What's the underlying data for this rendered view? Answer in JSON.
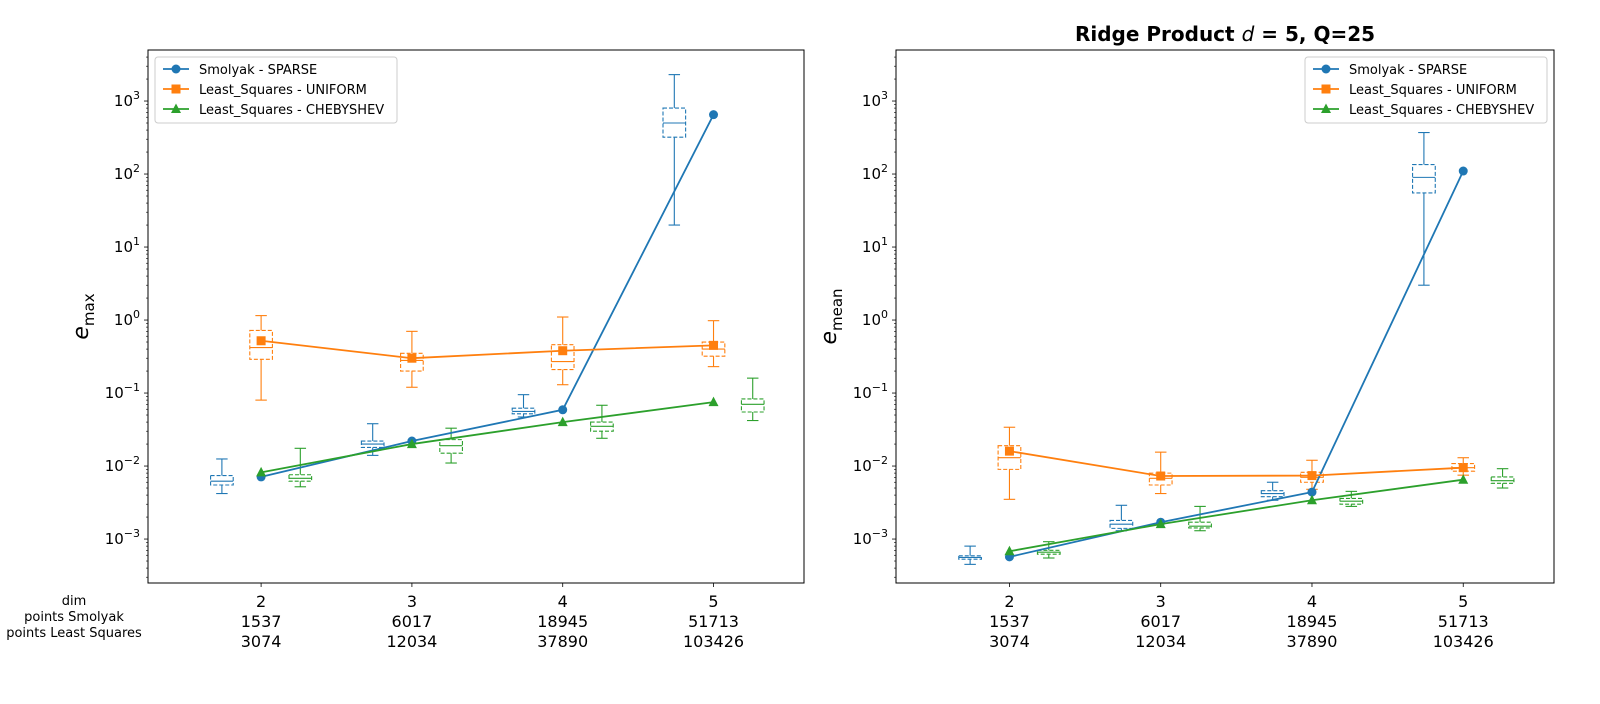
{
  "figure": {
    "row_labels": [
      "dim",
      "points Smolyak",
      "points Least Squares"
    ]
  },
  "chart_data": [
    {
      "type": "line",
      "title": "",
      "xlabel": "",
      "ylabel_base": "e",
      "ylabel_sub": "max",
      "yscale": "log",
      "ylim": [
        0.00025,
        5000
      ],
      "xlim": [
        1.25,
        5.6
      ],
      "grid": false,
      "legend_position": "top-left",
      "x": [
        2,
        3,
        4,
        5
      ],
      "x_tick_labels": [
        [
          "2",
          "1537",
          "3074"
        ],
        [
          "3",
          "6017",
          "12034"
        ],
        [
          "4",
          "18945",
          "37890"
        ],
        [
          "5",
          "51713",
          "103426"
        ]
      ],
      "y_ticks": [
        {
          "value": 0.001,
          "base": "10",
          "exp": "−3"
        },
        {
          "value": 0.01,
          "base": "10",
          "exp": "−2"
        },
        {
          "value": 0.1,
          "base": "10",
          "exp": "−1"
        },
        {
          "value": 1,
          "base": "10",
          "exp": "0"
        },
        {
          "value": 10,
          "base": "10",
          "exp": "1"
        },
        {
          "value": 100,
          "base": "10",
          "exp": "2"
        },
        {
          "value": 1000,
          "base": "10",
          "exp": "3"
        }
      ],
      "series": [
        {
          "name": "Smolyak - SPARSE",
          "color": "#1f77b4",
          "marker": "circle",
          "values": [
            0.0071,
            0.022,
            0.059,
            650
          ],
          "boxes": [
            {
              "whisker_low": 0.0042,
              "q1": 0.0055,
              "median": 0.0062,
              "q3": 0.0074,
              "whisker_high": 0.0125
            },
            {
              "whisker_low": 0.014,
              "q1": 0.018,
              "median": 0.02,
              "q3": 0.022,
              "whisker_high": 0.038
            },
            {
              "whisker_low": 0.047,
              "q1": 0.052,
              "median": 0.056,
              "q3": 0.062,
              "whisker_high": 0.095
            },
            {
              "whisker_low": 20,
              "q1": 320,
              "median": 500,
              "q3": 800,
              "whisker_high": 2300
            }
          ]
        },
        {
          "name": "Least_Squares - UNIFORM",
          "color": "#ff7f0e",
          "marker": "square",
          "values": [
            0.52,
            0.3,
            0.38,
            0.45
          ],
          "boxes": [
            {
              "whisker_low": 0.08,
              "q1": 0.29,
              "median": 0.42,
              "q3": 0.72,
              "whisker_high": 1.15
            },
            {
              "whisker_low": 0.12,
              "q1": 0.2,
              "median": 0.28,
              "q3": 0.35,
              "whisker_high": 0.7
            },
            {
              "whisker_low": 0.13,
              "q1": 0.21,
              "median": 0.27,
              "q3": 0.46,
              "whisker_high": 1.1
            },
            {
              "whisker_low": 0.23,
              "q1": 0.32,
              "median": 0.4,
              "q3": 0.5,
              "whisker_high": 0.98
            }
          ]
        },
        {
          "name": "Least_Squares - CHEBYSHEV",
          "color": "#2ca02c",
          "marker": "triangle",
          "values": [
            0.0082,
            0.02,
            0.04,
            0.075
          ],
          "boxes": [
            {
              "whisker_low": 0.0052,
              "q1": 0.0062,
              "median": 0.0068,
              "q3": 0.0076,
              "whisker_high": 0.0175
            },
            {
              "whisker_low": 0.011,
              "q1": 0.015,
              "median": 0.019,
              "q3": 0.023,
              "whisker_high": 0.033
            },
            {
              "whisker_low": 0.024,
              "q1": 0.03,
              "median": 0.035,
              "q3": 0.04,
              "whisker_high": 0.068
            },
            {
              "whisker_low": 0.042,
              "q1": 0.055,
              "median": 0.07,
              "q3": 0.083,
              "whisker_high": 0.16
            }
          ]
        }
      ]
    },
    {
      "type": "line",
      "title_main": "Ridge Product ",
      "title_var": "d",
      "title_rest": " = 5, Q=25",
      "xlabel": "",
      "ylabel_base": "e",
      "ylabel_sub": "mean",
      "yscale": "log",
      "ylim": [
        0.00025,
        5000
      ],
      "xlim": [
        1.25,
        5.6
      ],
      "grid": false,
      "legend_position": "top-right",
      "x": [
        2,
        3,
        4,
        5
      ],
      "x_tick_labels": [
        [
          "2",
          "1537",
          "3074"
        ],
        [
          "3",
          "6017",
          "12034"
        ],
        [
          "4",
          "18945",
          "37890"
        ],
        [
          "5",
          "51713",
          "103426"
        ]
      ],
      "y_ticks": [
        {
          "value": 0.001,
          "base": "10",
          "exp": "−3"
        },
        {
          "value": 0.01,
          "base": "10",
          "exp": "−2"
        },
        {
          "value": 0.1,
          "base": "10",
          "exp": "−1"
        },
        {
          "value": 1,
          "base": "10",
          "exp": "0"
        },
        {
          "value": 10,
          "base": "10",
          "exp": "1"
        },
        {
          "value": 100,
          "base": "10",
          "exp": "2"
        },
        {
          "value": 1000,
          "base": "10",
          "exp": "3"
        }
      ],
      "series": [
        {
          "name": "Smolyak - SPARSE",
          "color": "#1f77b4",
          "marker": "circle",
          "values": [
            0.00057,
            0.0017,
            0.0044,
            110
          ],
          "boxes": [
            {
              "whisker_low": 0.00045,
              "q1": 0.00053,
              "median": 0.00056,
              "q3": 0.00059,
              "whisker_high": 0.0008
            },
            {
              "whisker_low": 0.0013,
              "q1": 0.0014,
              "median": 0.0016,
              "q3": 0.0018,
              "whisker_high": 0.0029
            },
            {
              "whisker_low": 0.0034,
              "q1": 0.0038,
              "median": 0.0042,
              "q3": 0.0046,
              "whisker_high": 0.006
            },
            {
              "whisker_low": 3,
              "q1": 55,
              "median": 90,
              "q3": 135,
              "whisker_high": 370
            }
          ]
        },
        {
          "name": "Least_Squares - UNIFORM",
          "color": "#ff7f0e",
          "marker": "square",
          "values": [
            0.016,
            0.0073,
            0.0074,
            0.0095
          ],
          "boxes": [
            {
              "whisker_low": 0.0035,
              "q1": 0.009,
              "median": 0.013,
              "q3": 0.019,
              "whisker_high": 0.034
            },
            {
              "whisker_low": 0.0042,
              "q1": 0.0055,
              "median": 0.0068,
              "q3": 0.008,
              "whisker_high": 0.0155
            },
            {
              "whisker_low": 0.0048,
              "q1": 0.006,
              "median": 0.007,
              "q3": 0.0082,
              "whisker_high": 0.012
            },
            {
              "whisker_low": 0.0075,
              "q1": 0.0085,
              "median": 0.0095,
              "q3": 0.0108,
              "whisker_high": 0.013
            }
          ]
        },
        {
          "name": "Least_Squares - CHEBYSHEV",
          "color": "#2ca02c",
          "marker": "triangle",
          "values": [
            0.00068,
            0.0016,
            0.0034,
            0.0065
          ],
          "boxes": [
            {
              "whisker_low": 0.00055,
              "q1": 0.00062,
              "median": 0.00066,
              "q3": 0.0007,
              "whisker_high": 0.00092
            },
            {
              "whisker_low": 0.0013,
              "q1": 0.00142,
              "median": 0.0015,
              "q3": 0.0017,
              "whisker_high": 0.0028
            },
            {
              "whisker_low": 0.0028,
              "q1": 0.003,
              "median": 0.0033,
              "q3": 0.0036,
              "whisker_high": 0.0045
            },
            {
              "whisker_low": 0.005,
              "q1": 0.0058,
              "median": 0.0063,
              "q3": 0.0071,
              "whisker_high": 0.0092
            }
          ]
        }
      ]
    }
  ]
}
